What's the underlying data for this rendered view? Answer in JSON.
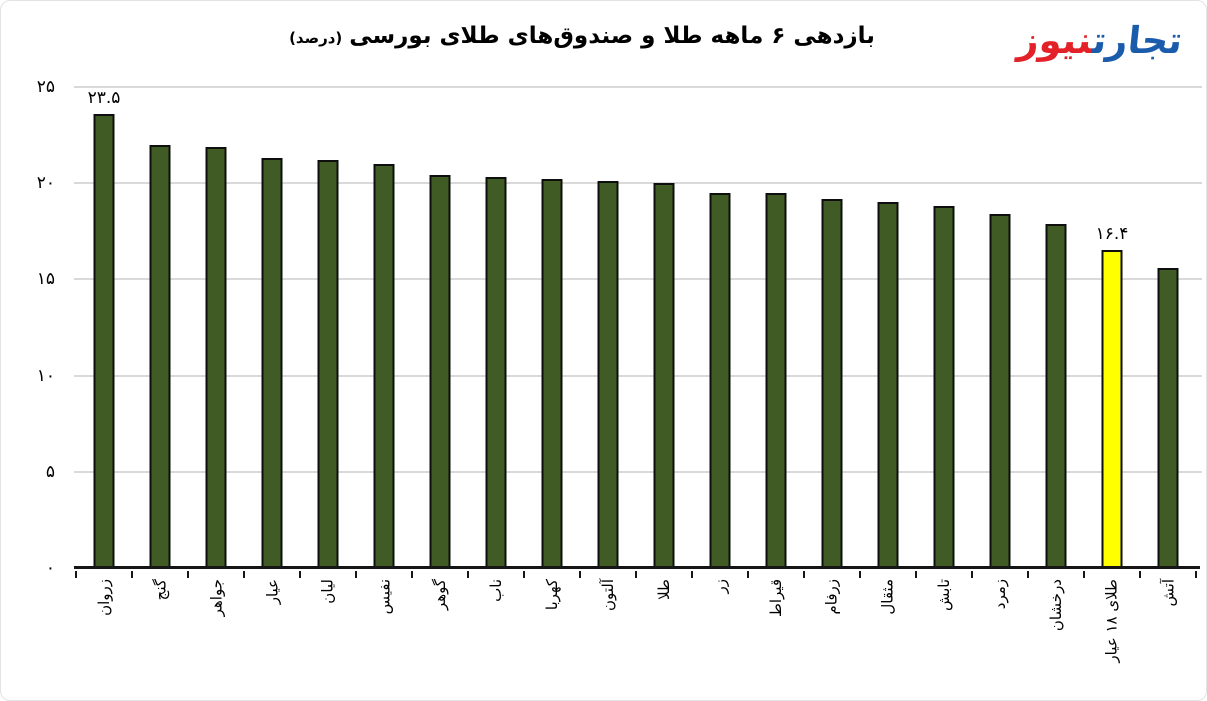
{
  "header": {
    "title_main": "بازدهی ۶ ماهه طلا و صندوق‌های طلای بورسی",
    "title_suffix": "(درصد)",
    "logo": {
      "text_blue": "تجارت",
      "text_red": "نیوز",
      "color_blue": "#1a5cab",
      "color_red": "#e32128"
    }
  },
  "chart_data": {
    "type": "bar",
    "title": "بازدهی ۶ ماهه طلا و صندوق‌های طلای بورسی (درصد)",
    "xlabel": "",
    "ylabel": "",
    "ylim": [
      0,
      25
    ],
    "grid": true,
    "legend": "none",
    "categories": [
      "زروان",
      "گنج",
      "جواهر",
      "عیار",
      "لیان",
      "نفیس",
      "گوهر",
      "ناب",
      "کهربا",
      "آلتون",
      "طلا",
      "زر",
      "قیراط",
      "زرفام",
      "مثقال",
      "تابش",
      "زمرد",
      "درخشان",
      "طلای ۱۸ عیار",
      "آتش"
    ],
    "values": [
      23.5,
      21.9,
      21.8,
      21.2,
      21.1,
      20.9,
      20.3,
      20.2,
      20.1,
      20.0,
      19.9,
      19.4,
      19.4,
      19.1,
      18.9,
      18.7,
      18.3,
      17.8,
      16.4,
      15.5
    ],
    "highlight_index": 18,
    "yticks": [
      0,
      5,
      10,
      15,
      20,
      25
    ],
    "yticks_fa": [
      "۰",
      "۵",
      "۱۰",
      "۱۵",
      "۲۰",
      "۲۵"
    ],
    "data_labels": [
      {
        "index": 0,
        "text": "۲۳.۵"
      },
      {
        "index": 18,
        "text": "۱۶.۴"
      }
    ],
    "colors": {
      "bar": "#405c24",
      "bar_border": "#0e0e0e",
      "highlight": "#ffff00",
      "grid": "#d9d9d9",
      "axis": "#161616",
      "text": "#000000"
    }
  }
}
